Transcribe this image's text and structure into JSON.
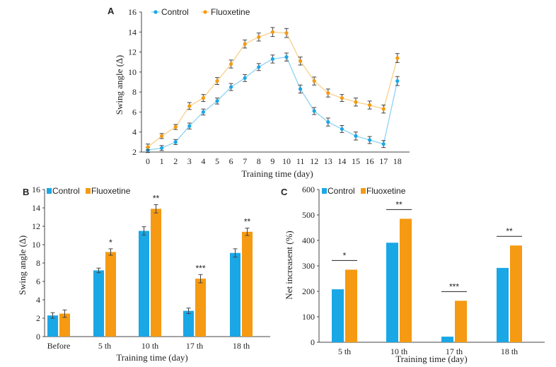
{
  "colors": {
    "control": "#1aa7e6",
    "fluoxetine": "#f59a12",
    "control_line": "#8fd3f2",
    "fluoxetine_line": "#f7d08a",
    "error": "#444444"
  },
  "chart_data": [
    {
      "panel": "A",
      "type": "line",
      "x": [
        0,
        1,
        2,
        3,
        4,
        5,
        6,
        7,
        8,
        9,
        10,
        11,
        12,
        13,
        14,
        15,
        16,
        17,
        18
      ],
      "xtick_labels": [
        "0",
        "1",
        "2",
        "3",
        "4",
        "5",
        "6",
        "7",
        "8",
        "9",
        "10",
        "11",
        "12",
        "13",
        "14",
        "15",
        "16",
        "17",
        "18"
      ],
      "xlabel": "Training time (day)",
      "ylabel": "Swing angle (∆)",
      "ylim": [
        2,
        16
      ],
      "yticks": [
        2,
        4,
        6,
        8,
        10,
        12,
        14,
        16
      ],
      "ytick_labels": [
        "2",
        "4",
        "6",
        "8",
        "10",
        "12",
        "14",
        "16"
      ],
      "legend": "top-left",
      "series": [
        {
          "name": "Control",
          "values": [
            2.2,
            2.4,
            3.0,
            4.6,
            6.0,
            7.1,
            8.5,
            9.4,
            10.5,
            11.3,
            11.5,
            8.3,
            6.1,
            5.0,
            4.3,
            3.6,
            3.2,
            2.8,
            9.1
          ],
          "err": [
            0.25,
            0.25,
            0.25,
            0.3,
            0.3,
            0.3,
            0.35,
            0.35,
            0.35,
            0.4,
            0.4,
            0.4,
            0.35,
            0.4,
            0.35,
            0.4,
            0.35,
            0.35,
            0.45
          ]
        },
        {
          "name": "Fluoxetine",
          "values": [
            2.5,
            3.6,
            4.5,
            6.6,
            7.4,
            9.1,
            10.8,
            12.8,
            13.5,
            14.0,
            13.9,
            11.1,
            9.1,
            7.9,
            7.4,
            7.0,
            6.7,
            6.3,
            11.4
          ],
          "err": [
            0.3,
            0.25,
            0.25,
            0.35,
            0.35,
            0.35,
            0.4,
            0.4,
            0.4,
            0.45,
            0.45,
            0.4,
            0.4,
            0.4,
            0.35,
            0.4,
            0.4,
            0.4,
            0.45
          ]
        }
      ]
    },
    {
      "panel": "B",
      "type": "bar",
      "categories": [
        "Before",
        "5 th",
        "10 th",
        "17 th",
        "18 th"
      ],
      "xlabel": "Training time (day)",
      "ylabel": "Swing angle (∆)",
      "ylim": [
        0,
        16
      ],
      "yticks": [
        0,
        2,
        4,
        6,
        8,
        10,
        12,
        14,
        16
      ],
      "ytick_labels": [
        "0",
        "2",
        "4",
        "6",
        "8",
        "10",
        "12",
        "14",
        "16"
      ],
      "legend": "top-left",
      "series": [
        {
          "name": "Control",
          "values": [
            2.3,
            7.2,
            11.5,
            2.8,
            9.1
          ],
          "err": [
            0.3,
            0.25,
            0.45,
            0.3,
            0.45
          ]
        },
        {
          "name": "Fluoxetine",
          "values": [
            2.5,
            9.2,
            13.9,
            6.3,
            11.4
          ],
          "err": [
            0.4,
            0.35,
            0.45,
            0.45,
            0.4
          ]
        }
      ],
      "significance": [
        "",
        "*",
        "**",
        "***",
        "**"
      ]
    },
    {
      "panel": "C",
      "type": "bar",
      "categories": [
        "5 th",
        "10 th",
        "17 th",
        "18 th"
      ],
      "xlabel": "Training time (day)",
      "ylabel": "Net increasent (%)",
      "ylim": [
        0,
        600
      ],
      "yticks": [
        0,
        100,
        200,
        300,
        400,
        500,
        600
      ],
      "ytick_labels": [
        "0",
        "100",
        "200",
        "300",
        "400",
        "500",
        "600"
      ],
      "legend": "top-left",
      "series": [
        {
          "name": "Control",
          "values": [
            208,
            391,
            22,
            292
          ]
        },
        {
          "name": "Fluoxetine",
          "values": [
            285,
            485,
            163,
            380
          ]
        }
      ],
      "significance": [
        "*",
        "**",
        "***",
        "**"
      ]
    }
  ]
}
